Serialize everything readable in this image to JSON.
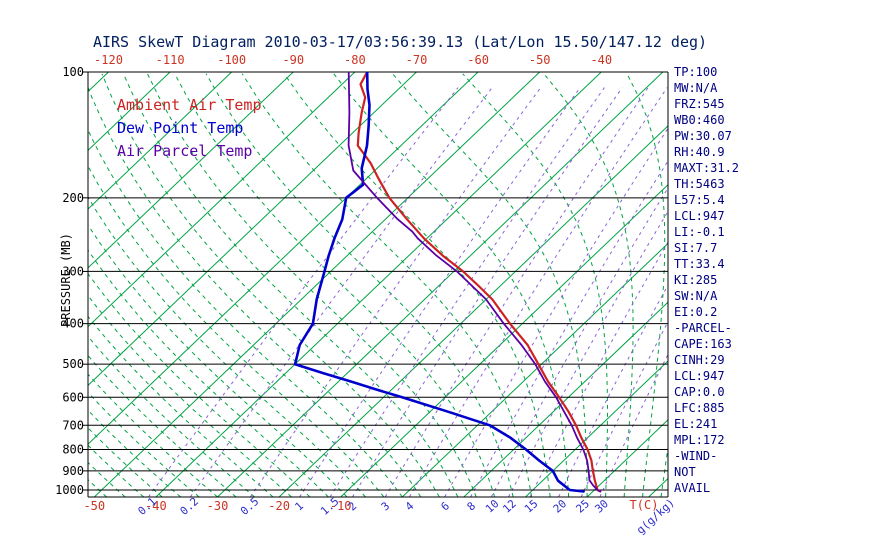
{
  "chart_data": {
    "type": "line",
    "title": "AIRS SkewT Diagram 2010-03-17/03:56:39.13 (Lat/Lon 15.50/147.12 deg)",
    "xlabel": "T(C)",
    "ylabel": "PRESSURE (MB)",
    "y_scale": "log",
    "ylim": [
      100,
      1040
    ],
    "pressure_ticks_mb": [
      100,
      200,
      300,
      400,
      500,
      600,
      700,
      800,
      900,
      1000
    ],
    "temp_ticks_top_c": [
      -120,
      -110,
      -100,
      -90,
      -80,
      -70,
      -60,
      -50,
      -40
    ],
    "temp_ticks_bottom_c": [
      -50,
      -40,
      -30,
      -20,
      -10
    ],
    "temp_unit_label": "T(C)",
    "mixing_ratio_ticks_gkg": [
      0.1,
      0.2,
      0.5,
      1,
      1.5,
      2,
      3,
      4,
      6,
      8,
      10,
      12,
      15,
      20,
      25,
      30
    ],
    "mixing_ratio_unit_label": "g(g/kg)",
    "isotherm_step_c": 10,
    "colors": {
      "title": "#002060",
      "stats_text": "#000080",
      "axis": "#000000",
      "pressure_labels": "#000000",
      "temp_tick_labels": "#cc3322",
      "isotherm_green": "#00a344",
      "moist_adiabat_green": "#00a344",
      "mixing_line_purple": "#8a62d8",
      "mixing_label_blue": "#2b2bcc",
      "ambient_red": "#cc2222",
      "dew_blue": "#0000cc",
      "parcel_purple": "#5a00a5"
    },
    "series": [
      {
        "name": "Ambient Air Temp",
        "color": "#cc2222",
        "points": [
          [
            1008,
            31.2
          ],
          [
            1000,
            30.5
          ],
          [
            950,
            28.5
          ],
          [
            900,
            26.5
          ],
          [
            850,
            24.5
          ],
          [
            800,
            22
          ],
          [
            750,
            19
          ],
          [
            700,
            16
          ],
          [
            650,
            12.5
          ],
          [
            600,
            8.5
          ],
          [
            550,
            4
          ],
          [
            500,
            -0.5
          ],
          [
            450,
            -5.5
          ],
          [
            400,
            -12
          ],
          [
            350,
            -19
          ],
          [
            325,
            -23.5
          ],
          [
            300,
            -28.5
          ],
          [
            275,
            -34.5
          ],
          [
            250,
            -40.5
          ],
          [
            225,
            -46.5
          ],
          [
            200,
            -53
          ],
          [
            180,
            -58
          ],
          [
            165,
            -62
          ],
          [
            150,
            -67
          ],
          [
            140,
            -69
          ],
          [
            125,
            -72
          ],
          [
            115,
            -74
          ],
          [
            107,
            -77
          ],
          [
            100,
            -78
          ]
        ]
      },
      {
        "name": "Dew Point Temp",
        "color": "#0000cc",
        "points": [
          [
            1008,
            28.5
          ],
          [
            1000,
            26
          ],
          [
            950,
            22.5
          ],
          [
            900,
            20
          ],
          [
            850,
            16
          ],
          [
            800,
            12
          ],
          [
            750,
            7.5
          ],
          [
            700,
            2
          ],
          [
            650,
            -7
          ],
          [
            600,
            -17
          ],
          [
            575,
            -22.5
          ],
          [
            550,
            -28
          ],
          [
            525,
            -34
          ],
          [
            500,
            -40
          ],
          [
            450,
            -42.5
          ],
          [
            400,
            -44
          ],
          [
            350,
            -47.5
          ],
          [
            300,
            -51
          ],
          [
            275,
            -53
          ],
          [
            250,
            -55
          ],
          [
            225,
            -57
          ],
          [
            200,
            -60
          ],
          [
            186,
            -59.5
          ],
          [
            170,
            -62.5
          ],
          [
            150,
            -65.5
          ],
          [
            135,
            -68.5
          ],
          [
            120,
            -72
          ],
          [
            110,
            -75
          ],
          [
            100,
            -78
          ]
        ]
      },
      {
        "name": "Air Parcel Temp",
        "color": "#5a00a5",
        "points": [
          [
            1008,
            31.2
          ],
          [
            1000,
            30.5
          ],
          [
            975,
            29
          ],
          [
            947,
            27.5
          ],
          [
            900,
            25.8
          ],
          [
            850,
            23.8
          ],
          [
            800,
            21.3
          ],
          [
            750,
            18.3
          ],
          [
            700,
            15.3
          ],
          [
            650,
            11.8
          ],
          [
            600,
            8
          ],
          [
            550,
            3.5
          ],
          [
            500,
            -1
          ],
          [
            450,
            -6.5
          ],
          [
            400,
            -13
          ],
          [
            350,
            -20
          ],
          [
            300,
            -29.5
          ],
          [
            275,
            -35.5
          ],
          [
            250,
            -41.5
          ],
          [
            241,
            -43.5
          ],
          [
            225,
            -48
          ],
          [
            200,
            -55
          ],
          [
            172,
            -63.5
          ],
          [
            150,
            -68.5
          ],
          [
            125,
            -74
          ],
          [
            100,
            -81
          ]
        ]
      }
    ],
    "stats_panel": [
      "TP:100",
      "MW:N/A",
      "FRZ:545",
      "WB0:460",
      "PW:30.07",
      "RH:40.9",
      "MAXT:31.2",
      "TH:5463",
      "L57:5.4",
      "LCL:947",
      "LI:-0.1",
      "SI:7.7",
      "TT:33.4",
      "KI:285",
      "SW:N/A",
      "EI:0.2",
      "-PARCEL-",
      "CAPE:163",
      "CINH:29",
      "LCL:947",
      "CAP:0.0",
      "LFC:885",
      "EL:241",
      "MPL:172",
      "-WIND-",
      "NOT",
      "AVAIL"
    ]
  }
}
